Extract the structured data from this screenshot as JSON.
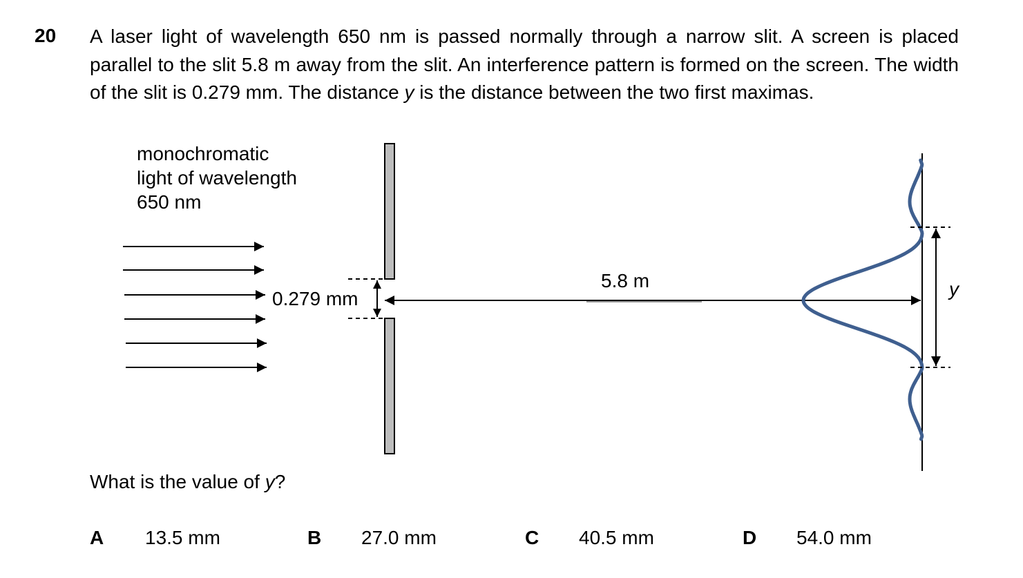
{
  "question": {
    "number": "20",
    "stem_part1": "A laser light of wavelength 650 nm is passed normally through a narrow slit. A screen is placed parallel to the slit 5.8 m away from the slit. An interference pattern is formed on the screen. The width of the slit is 0.279 mm. The distance ",
    "stem_var": "y",
    "stem_part2": " is the distance between the two first maximas.",
    "ask_part1": "What is the value of ",
    "ask_var": "y",
    "ask_part2": "?"
  },
  "diagram": {
    "light_label_line1": "monochromatic",
    "light_label_line2": "light of wavelength",
    "light_label_line3": "650 nm",
    "slit_width_label": "0.279 mm",
    "distance_label": "5.8 m",
    "y_label": "y",
    "pattern_color": "#3f5f8f",
    "barrier_color": "#bdbdbd"
  },
  "options": [
    {
      "letter": "A",
      "value": "13.5 mm"
    },
    {
      "letter": "B",
      "value": "27.0 mm"
    },
    {
      "letter": "C",
      "value": "40.5 mm"
    },
    {
      "letter": "D",
      "value": "54.0 mm"
    }
  ]
}
